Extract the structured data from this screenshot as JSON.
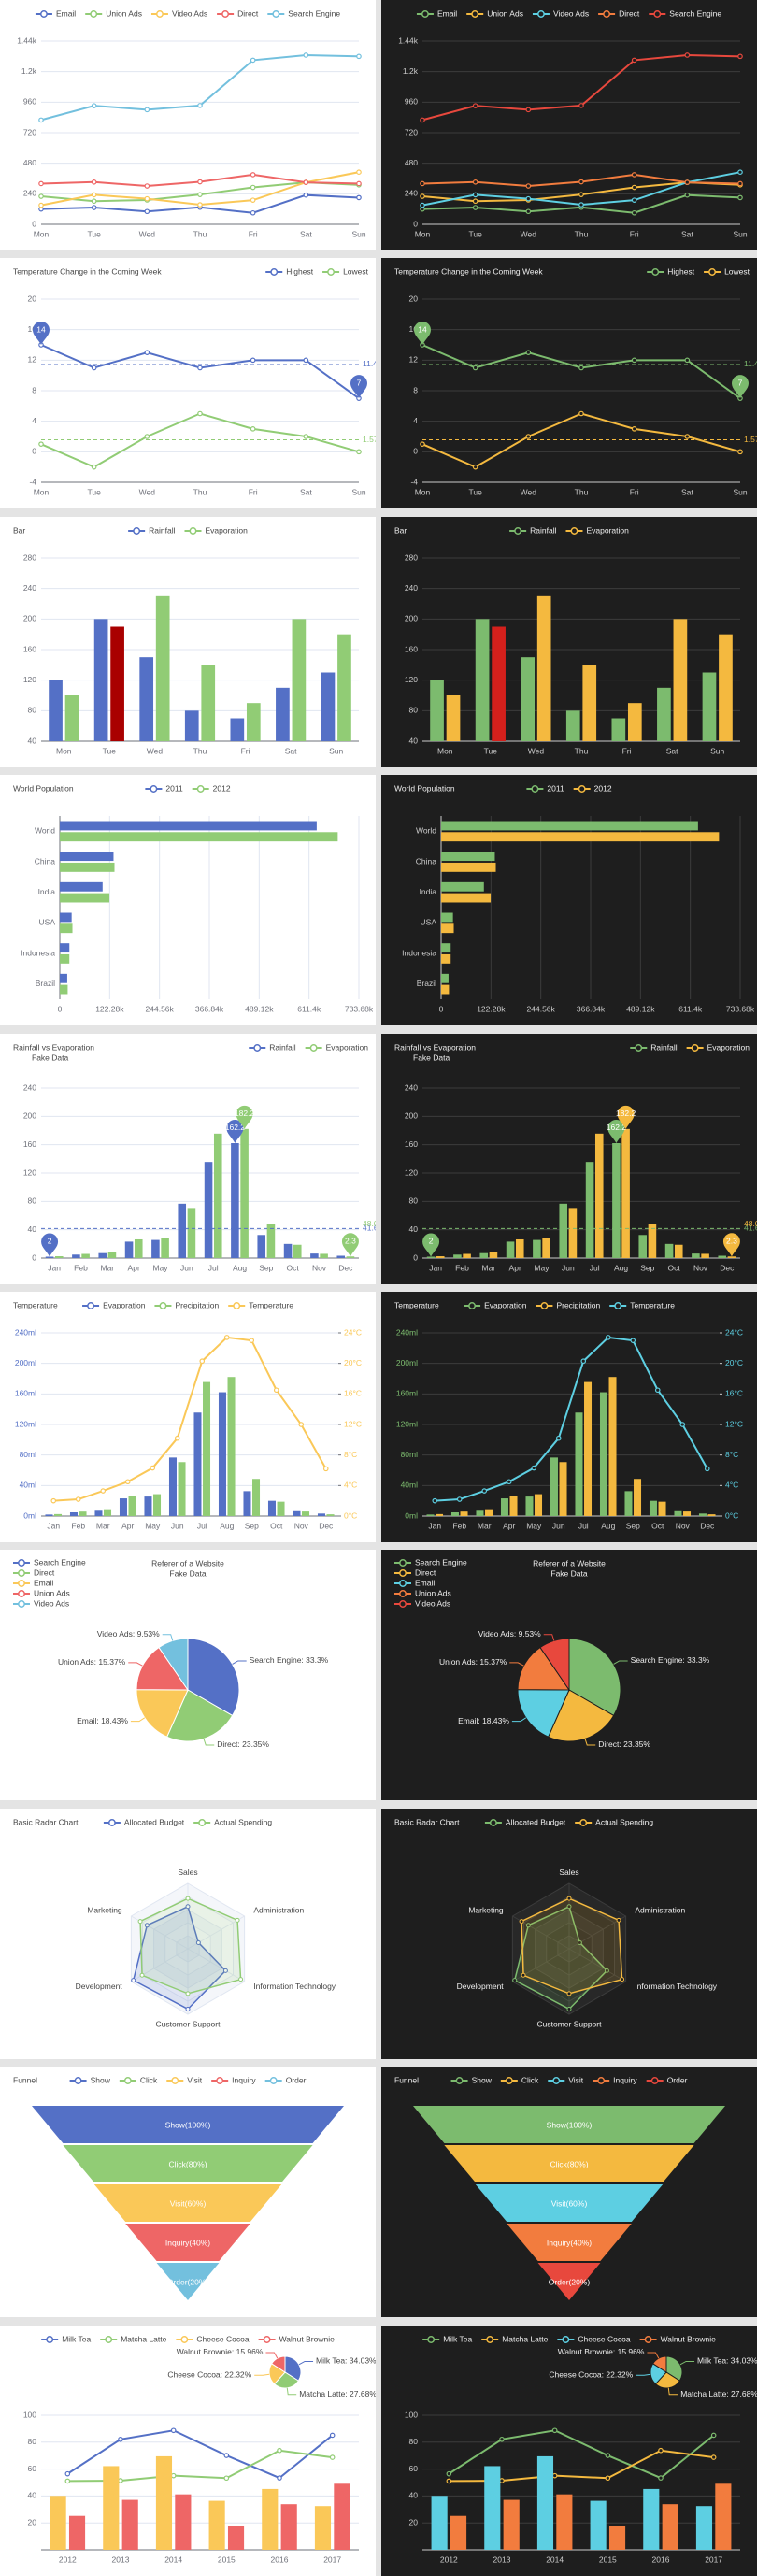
{
  "themes": [
    {
      "background": "#ffffff",
      "text": "#464646",
      "axis": "#6e7079",
      "grid": "#e0e6f1",
      "palette": [
        "#5470c6",
        "#91cc75",
        "#fac858",
        "#ee6666",
        "#73c0de"
      ]
    },
    {
      "background": "#1e1e1e",
      "text": "#eeeeee",
      "axis": "#cccccc",
      "grid": "#3c3c3c",
      "palette": [
        "#7cbb6e",
        "#f4b93f",
        "#5dcfe2",
        "#f27c3e",
        "#e8483d"
      ]
    }
  ],
  "chart_data": [
    {
      "type": "line",
      "legend": "top",
      "grid": true,
      "categories": [
        "Mon",
        "Tue",
        "Wed",
        "Thu",
        "Fri",
        "Sat",
        "Sun"
      ],
      "series": [
        {
          "name": "Email",
          "values": [
            120,
            132,
            101,
            134,
            90,
            230,
            210
          ]
        },
        {
          "name": "Union Ads",
          "values": [
            220,
            182,
            191,
            234,
            290,
            330,
            310
          ]
        },
        {
          "name": "Video Ads",
          "values": [
            150,
            232,
            201,
            154,
            190,
            330,
            410
          ]
        },
        {
          "name": "Direct",
          "values": [
            320,
            332,
            301,
            334,
            390,
            330,
            320
          ]
        },
        {
          "name": "Search Engine",
          "values": [
            820,
            932,
            901,
            934,
            1290,
            1330,
            1320
          ]
        }
      ],
      "ylim": [
        0,
        1440
      ],
      "yticks": [
        0,
        240,
        480,
        720,
        960,
        {
          "value": 1200,
          "label": "1.2k"
        },
        {
          "value": 1440,
          "label": "1.44k"
        }
      ]
    },
    {
      "type": "line",
      "title": "Temperature Change in the Coming Week",
      "legend": "top-right",
      "grid": true,
      "categories": [
        "Mon",
        "Tue",
        "Wed",
        "Thu",
        "Fri",
        "Sat",
        "Sun"
      ],
      "series": [
        {
          "name": "Highest",
          "values": [
            14,
            11,
            13,
            11,
            12,
            12,
            7
          ],
          "mark_points": [
            "max",
            "min"
          ],
          "average": 11.43
        },
        {
          "name": "Lowest",
          "values": [
            1,
            -2,
            2,
            5,
            3,
            2,
            0
          ],
          "average": 1.57
        }
      ],
      "ylim": [
        -4,
        20
      ],
      "yticks": [
        -4,
        0,
        4,
        8,
        12,
        16,
        20
      ]
    },
    {
      "type": "bar",
      "title": "Bar",
      "legend": "top",
      "grid": true,
      "categories": [
        "Mon",
        "Tue",
        "Wed",
        "Thu",
        "Fri",
        "Sat",
        "Sun"
      ],
      "series": [
        {
          "name": "Rainfall",
          "values": [
            120,
            200,
            150,
            80,
            70,
            110,
            130
          ]
        },
        {
          "name": "Evaporation",
          "values": [
            100,
            190,
            230,
            140,
            90,
            200,
            180
          ]
        }
      ],
      "highlight": {
        "series": 1,
        "index": 1,
        "colors": [
          "#a90000",
          "#d4201c"
        ]
      },
      "ylim": [
        40,
        280
      ],
      "yticks": [
        40,
        80,
        120,
        160,
        200,
        240,
        280
      ]
    },
    {
      "type": "bar",
      "horizontal": true,
      "title": "World Population",
      "legend": "top",
      "grid": true,
      "categories": [
        "Brazil",
        "Indonesia",
        "USA",
        "India",
        "China",
        "World"
      ],
      "series": [
        {
          "name": "2011",
          "values": [
            18203,
            23489,
            29034,
            104970,
            131744,
            630230
          ]
        },
        {
          "name": "2012",
          "values": [
            19325,
            23438,
            31000,
            121594,
            134141,
            681807
          ]
        }
      ],
      "xlim": [
        0,
        733680
      ],
      "xticks": [
        0,
        {
          "value": 122280,
          "label": "122.28k"
        },
        {
          "value": 244560,
          "label": "244.56k"
        },
        {
          "value": 366840,
          "label": "366.84k"
        },
        {
          "value": 489120,
          "label": "489.12k"
        },
        {
          "value": 611400,
          "label": "611.4k"
        },
        {
          "value": 733680,
          "label": "733.68k"
        }
      ]
    },
    {
      "type": "bar",
      "title": "Rainfall vs Evaporation",
      "subtitle": "Fake Data",
      "legend": "top-right",
      "grid": true,
      "categories": [
        "Jan",
        "Feb",
        "Mar",
        "Apr",
        "May",
        "Jun",
        "Jul",
        "Aug",
        "Sep",
        "Oct",
        "Nov",
        "Dec"
      ],
      "series": [
        {
          "name": "Rainfall",
          "values": [
            2,
            4.9,
            7,
            23.2,
            25.6,
            76.7,
            135.6,
            162.2,
            32.6,
            20,
            6.4,
            3.3
          ],
          "mark_points": [
            "max",
            "min"
          ],
          "average": 41.63
        },
        {
          "name": "Evaporation",
          "values": [
            2.6,
            5.9,
            9,
            26.4,
            28.7,
            70.7,
            175.6,
            182.2,
            48.7,
            18.8,
            6,
            2.3
          ],
          "mark_points": [
            "max",
            "min"
          ],
          "average": 48.08
        }
      ],
      "ylim": [
        0,
        240
      ],
      "yticks": [
        0,
        40,
        80,
        120,
        160,
        200,
        240
      ]
    },
    {
      "type": "bar",
      "title": "Temperature",
      "legend": "top",
      "grid": true,
      "categories": [
        "Jan",
        "Feb",
        "Mar",
        "Apr",
        "May",
        "Jun",
        "Jul",
        "Aug",
        "Sep",
        "Oct",
        "Nov",
        "Dec"
      ],
      "series": [
        {
          "name": "Evaporation",
          "values": [
            2,
            4.9,
            7,
            23.2,
            25.6,
            76.7,
            135.6,
            162.2,
            32.6,
            20,
            6.4,
            3.3
          ]
        },
        {
          "name": "Precipitation",
          "values": [
            2.6,
            5.9,
            9,
            26.4,
            28.7,
            70.7,
            175.6,
            182.2,
            48.7,
            18.8,
            6,
            2.3
          ]
        },
        {
          "name": "Temperature",
          "type": "line",
          "axis": "y2",
          "values": [
            2,
            2.2,
            3.3,
            4.5,
            6.3,
            10.2,
            20.3,
            23.4,
            23,
            16.5,
            12,
            6.2
          ]
        }
      ],
      "ylim": [
        0,
        240
      ],
      "yticks": [
        {
          "value": 0,
          "label": "0ml"
        },
        {
          "value": 40,
          "label": "40ml"
        },
        {
          "value": 80,
          "label": "80ml"
        },
        {
          "value": 120,
          "label": "120ml"
        },
        {
          "value": 160,
          "label": "160ml"
        },
        {
          "value": 200,
          "label": "200ml"
        },
        {
          "value": 240,
          "label": "240ml"
        }
      ],
      "y2lim": [
        0,
        24
      ],
      "y2ticks": [
        {
          "value": 0,
          "label": "0°C"
        },
        {
          "value": 4,
          "label": "4°C"
        },
        {
          "value": 8,
          "label": "8°C"
        },
        {
          "value": 12,
          "label": "12°C"
        },
        {
          "value": 16,
          "label": "16°C"
        },
        {
          "value": 20,
          "label": "20°C"
        },
        {
          "value": 24,
          "label": "24°C"
        }
      ]
    },
    {
      "type": "pie",
      "title": "Referer of a Website",
      "subtitle": "Fake Data",
      "title_align": "center",
      "legend": "left",
      "categories": [
        "Search Engine",
        "Direct",
        "Email",
        "Union Ads",
        "Video Ads"
      ],
      "values": [
        33.3,
        23.35,
        18.43,
        15.37,
        9.53
      ],
      "value_labels": [
        "Search Engine: 33.3%",
        "Direct: 23.35%",
        "Email: 18.43%",
        "Union Ads: 15.37%",
        "Video Ads: 9.53%"
      ]
    },
    {
      "type": "radar",
      "title": "Basic Radar Chart",
      "legend": "top",
      "indicators": [
        {
          "name": "Sales",
          "max": 6500
        },
        {
          "name": "Administration",
          "max": 16000
        },
        {
          "name": "Information Technology",
          "max": 30000
        },
        {
          "name": "Customer Support",
          "max": 38000
        },
        {
          "name": "Development",
          "max": 52000
        },
        {
          "name": "Marketing",
          "max": 25000
        }
      ],
      "series": [
        {
          "name": "Allocated Budget",
          "values": [
            4200,
            3000,
            20000,
            35000,
            50000,
            18000
          ]
        },
        {
          "name": "Actual Spending",
          "values": [
            5000,
            14000,
            28000,
            26000,
            42000,
            21000
          ]
        }
      ]
    },
    {
      "type": "funnel",
      "title": "Funnel",
      "legend": "top",
      "categories": [
        "Show",
        "Click",
        "Visit",
        "Inquiry",
        "Order"
      ],
      "values": [
        100,
        80,
        60,
        40,
        20
      ],
      "value_labels": [
        "Show(100%)",
        "Click(80%)",
        "Visit(60%)",
        "Inquiry(40%)",
        "Order(20%)"
      ]
    },
    {
      "type": "bar",
      "legend": "top",
      "grid": true,
      "categories": [
        "2012",
        "2013",
        "2014",
        "2015",
        "2016",
        "2017"
      ],
      "series": [
        {
          "name": "Milk Tea",
          "type": "line",
          "values": [
            56.5,
            82.1,
            88.7,
            70.1,
            53.4,
            85.1
          ]
        },
        {
          "name": "Matcha Latte",
          "type": "line",
          "values": [
            51.1,
            51.4,
            55.1,
            53.3,
            73.8,
            68.7
          ]
        },
        {
          "name": "Cheese Cocoa",
          "values": [
            40.1,
            62.2,
            69.5,
            36.4,
            45.2,
            32.5
          ]
        },
        {
          "name": "Walnut Brownie",
          "values": [
            25.2,
            37.1,
            41.2,
            18,
            33.9,
            49.1
          ]
        }
      ],
      "pie": {
        "values": [
          34.03,
          27.68,
          22.32,
          15.96
        ],
        "value_labels": [
          "Milk Tea: 34.03%",
          "Matcha Latte: 27.68%",
          "Cheese Cocoa: 22.32%",
          "Walnut Brownie: 15.96%"
        ]
      },
      "ylim": [
        0,
        100
      ],
      "yticks": [
        20,
        40,
        60,
        80,
        100
      ]
    }
  ]
}
